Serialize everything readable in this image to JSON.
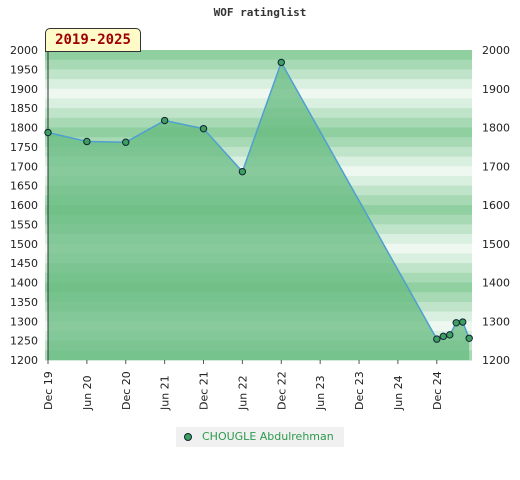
{
  "header": {
    "title": "WOF ratinglist",
    "period": "2019-2025"
  },
  "legend": {
    "label": "CHOUGLE Abdulrehman"
  },
  "colors": {
    "area": "#66bb80",
    "line": "#4f9fd0",
    "marker": "#3da060",
    "band_dark": "#8fcfa0",
    "band_light": "#e8f4ea"
  },
  "chart_data": {
    "type": "area",
    "title": "WOF ratinglist",
    "xlabel": "",
    "ylabel": "",
    "ylim": [
      1200,
      2000
    ],
    "yticks": [
      1200,
      1250,
      1300,
      1350,
      1400,
      1450,
      1500,
      1550,
      1600,
      1650,
      1700,
      1750,
      1800,
      1850,
      1900,
      1950,
      2000
    ],
    "yticks_right": [
      1200,
      1300,
      1400,
      1500,
      1600,
      1700,
      1800,
      1900,
      2000
    ],
    "xlim": [
      "2019-12",
      "2025-03"
    ],
    "xticks": [
      {
        "label": "Dec 19",
        "date": "2019-12"
      },
      {
        "label": "Jun 20",
        "date": "2020-06"
      },
      {
        "label": "Dec 20",
        "date": "2020-12"
      },
      {
        "label": "Jun 21",
        "date": "2021-06"
      },
      {
        "label": "Dec 21",
        "date": "2021-12"
      },
      {
        "label": "Jun 22",
        "date": "2022-06"
      },
      {
        "label": "Dec 22",
        "date": "2022-12"
      },
      {
        "label": "Jun 23",
        "date": "2023-06"
      },
      {
        "label": "Dec 23",
        "date": "2023-12"
      },
      {
        "label": "Jun 24",
        "date": "2024-06"
      },
      {
        "label": "Dec 24",
        "date": "2024-12"
      }
    ],
    "series": [
      {
        "name": "CHOUGLE Abdulrehman",
        "points": [
          {
            "x": "2019-12",
            "y": 1787
          },
          {
            "x": "2020-06",
            "y": 1764
          },
          {
            "x": "2020-12",
            "y": 1762
          },
          {
            "x": "2021-06",
            "y": 1818
          },
          {
            "x": "2021-12",
            "y": 1797
          },
          {
            "x": "2022-06",
            "y": 1686
          },
          {
            "x": "2022-12",
            "y": 1968
          },
          {
            "x": "2024-12",
            "y": 1254
          },
          {
            "x": "2025-01",
            "y": 1261
          },
          {
            "x": "2025-02",
            "y": 1265
          },
          {
            "x": "2025-03",
            "y": 1296
          },
          {
            "x": "2025-04",
            "y": 1298
          },
          {
            "x": "2025-05",
            "y": 1256
          }
        ]
      }
    ],
    "grid": true,
    "legend_position": "bottom"
  }
}
